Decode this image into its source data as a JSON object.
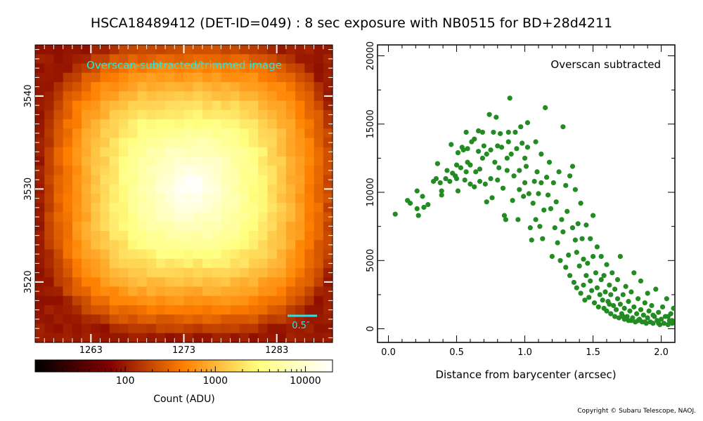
{
  "page": {
    "title": "HSCA18489412 (DET-ID=049) :  8 sec exposure with NB0515 for BD+28d4211",
    "copyright": "Copyright © Subaru Telescope, NAOJ."
  },
  "chart_data": [
    {
      "type": "heatmap",
      "title": "Overscan-subtracted/trimmed image",
      "x_ticks": [
        1263,
        1273,
        1283
      ],
      "y_ticks": [
        3520,
        3530,
        3540
      ],
      "xlim": [
        1257,
        1289
      ],
      "ylim": [
        3513.5,
        3545.5
      ],
      "scale_bar_label": "0.5″",
      "colormap": "afmhot",
      "colorbar": {
        "label": "Count (ADU)",
        "scale": "log",
        "range": [
          10,
          20000
        ],
        "ticks": [
          "100",
          "1000",
          "10000"
        ]
      }
    },
    {
      "type": "scatter",
      "annotation": "Overscan subtracted",
      "xlabel": "Distance from barycenter (arcsec)",
      "ylabel": "",
      "xlim": [
        -0.08,
        2.1
      ],
      "ylim": [
        -1000,
        20800
      ],
      "x_ticks": [
        "0.0",
        "0.5",
        "1.0",
        "1.5",
        "2.0"
      ],
      "y_ticks": [
        "0",
        "5000",
        "10000",
        "15000",
        "20000"
      ],
      "color": "#228b22",
      "points": [
        [
          0.05,
          8400
        ],
        [
          0.14,
          9400
        ],
        [
          0.16,
          9200
        ],
        [
          0.21,
          8800
        ],
        [
          0.21,
          10100
        ],
        [
          0.22,
          8300
        ],
        [
          0.25,
          9700
        ],
        [
          0.26,
          8900
        ],
        [
          0.29,
          9100
        ],
        [
          0.33,
          10800
        ],
        [
          0.35,
          11000
        ],
        [
          0.36,
          12100
        ],
        [
          0.38,
          10700
        ],
        [
          0.39,
          10100
        ],
        [
          0.39,
          9800
        ],
        [
          0.42,
          11000
        ],
        [
          0.43,
          11600
        ],
        [
          0.45,
          10800
        ],
        [
          0.46,
          13500
        ],
        [
          0.47,
          11400
        ],
        [
          0.49,
          11200
        ],
        [
          0.5,
          12000
        ],
        [
          0.5,
          11000
        ],
        [
          0.51,
          12900
        ],
        [
          0.51,
          10100
        ],
        [
          0.53,
          11800
        ],
        [
          0.54,
          13300
        ],
        [
          0.55,
          13100
        ],
        [
          0.56,
          10900
        ],
        [
          0.57,
          11500
        ],
        [
          0.57,
          14400
        ],
        [
          0.58,
          13200
        ],
        [
          0.58,
          12200
        ],
        [
          0.6,
          12000
        ],
        [
          0.6,
          10600
        ],
        [
          0.61,
          13700
        ],
        [
          0.63,
          13900
        ],
        [
          0.63,
          10400
        ],
        [
          0.64,
          11500
        ],
        [
          0.66,
          14500
        ],
        [
          0.66,
          13000
        ],
        [
          0.67,
          11700
        ],
        [
          0.67,
          10800
        ],
        [
          0.69,
          14400
        ],
        [
          0.69,
          12500
        ],
        [
          0.7,
          13400
        ],
        [
          0.71,
          10600
        ],
        [
          0.72,
          12800
        ],
        [
          0.72,
          9300
        ],
        [
          0.74,
          15700
        ],
        [
          0.75,
          13100
        ],
        [
          0.75,
          11000
        ],
        [
          0.76,
          9600
        ],
        [
          0.77,
          14400
        ],
        [
          0.78,
          12200
        ],
        [
          0.79,
          15500
        ],
        [
          0.8,
          13400
        ],
        [
          0.8,
          10900
        ],
        [
          0.81,
          11800
        ],
        [
          0.82,
          14300
        ],
        [
          0.83,
          13300
        ],
        [
          0.84,
          10300
        ],
        [
          0.85,
          8300
        ],
        [
          0.86,
          8000
        ],
        [
          0.87,
          12500
        ],
        [
          0.87,
          11600
        ],
        [
          0.88,
          14400
        ],
        [
          0.88,
          13700
        ],
        [
          0.89,
          16900
        ],
        [
          0.9,
          12800
        ],
        [
          0.91,
          9400
        ],
        [
          0.92,
          11200
        ],
        [
          0.93,
          14400
        ],
        [
          0.94,
          13200
        ],
        [
          0.95,
          8000
        ],
        [
          0.96,
          10200
        ],
        [
          0.96,
          11600
        ],
        [
          0.97,
          14800
        ],
        [
          0.98,
          13600
        ],
        [
          0.99,
          9700
        ],
        [
          1,
          12500
        ],
        [
          1,
          10700
        ],
        [
          1.01,
          11900
        ],
        [
          1.02,
          13300
        ],
        [
          1.02,
          15100
        ],
        [
          1.03,
          9900
        ],
        [
          1.04,
          7400
        ],
        [
          1.05,
          6500
        ],
        [
          1.06,
          9200
        ],
        [
          1.07,
          10800
        ],
        [
          1.08,
          13700
        ],
        [
          1.08,
          8000
        ],
        [
          1.09,
          11500
        ],
        [
          1.1,
          9900
        ],
        [
          1.11,
          7500
        ],
        [
          1.12,
          12800
        ],
        [
          1.12,
          10700
        ],
        [
          1.13,
          6600
        ],
        [
          1.14,
          8700
        ],
        [
          1.15,
          16200
        ],
        [
          1.16,
          11100
        ],
        [
          1.17,
          9800
        ],
        [
          1.18,
          12200
        ],
        [
          1.19,
          8800
        ],
        [
          1.2,
          5300
        ],
        [
          1.21,
          10700
        ],
        [
          1.22,
          7400
        ],
        [
          1.23,
          9300
        ],
        [
          1.24,
          6300
        ],
        [
          1.25,
          11500
        ],
        [
          1.26,
          5000
        ],
        [
          1.27,
          8000
        ],
        [
          1.28,
          14800
        ],
        [
          1.28,
          7100
        ],
        [
          1.3,
          10500
        ],
        [
          1.3,
          4500
        ],
        [
          1.31,
          8600
        ],
        [
          1.32,
          5400
        ],
        [
          1.33,
          11200
        ],
        [
          1.33,
          3900
        ],
        [
          1.35,
          7400
        ],
        [
          1.35,
          11900
        ],
        [
          1.36,
          3400
        ],
        [
          1.37,
          6500
        ],
        [
          1.37,
          10200
        ],
        [
          1.38,
          5600
        ],
        [
          1.38,
          3000
        ],
        [
          1.39,
          7700
        ],
        [
          1.4,
          4600
        ],
        [
          1.41,
          2600
        ],
        [
          1.41,
          9200
        ],
        [
          1.42,
          6600
        ],
        [
          1.43,
          3200
        ],
        [
          1.43,
          5100
        ],
        [
          1.44,
          2100
        ],
        [
          1.45,
          7600
        ],
        [
          1.45,
          3900
        ],
        [
          1.46,
          4800
        ],
        [
          1.47,
          2300
        ],
        [
          1.48,
          6600
        ],
        [
          1.48,
          3500
        ],
        [
          1.49,
          2800
        ],
        [
          1.5,
          5300
        ],
        [
          1.5,
          8300
        ],
        [
          1.51,
          1900
        ],
        [
          1.52,
          4100
        ],
        [
          1.53,
          3000
        ],
        [
          1.53,
          6000
        ],
        [
          1.54,
          1600
        ],
        [
          1.55,
          2500
        ],
        [
          1.56,
          3600
        ],
        [
          1.56,
          5300
        ],
        [
          1.57,
          2100
        ],
        [
          1.58,
          1500
        ],
        [
          1.58,
          3900
        ],
        [
          1.59,
          2700
        ],
        [
          1.6,
          4700
        ],
        [
          1.6,
          1300
        ],
        [
          1.61,
          2000
        ],
        [
          1.62,
          3200
        ],
        [
          1.63,
          1100
        ],
        [
          1.63,
          2500
        ],
        [
          1.64,
          4100
        ],
        [
          1.65,
          1700
        ],
        [
          1.66,
          900
        ],
        [
          1.66,
          2900
        ],
        [
          1.67,
          1400
        ],
        [
          1.68,
          2200
        ],
        [
          1.68,
          3600
        ],
        [
          1.69,
          800
        ],
        [
          1.7,
          1800
        ],
        [
          1.7,
          5300
        ],
        [
          1.71,
          1100
        ],
        [
          1.72,
          2500
        ],
        [
          1.73,
          700
        ],
        [
          1.73,
          1500
        ],
        [
          1.74,
          3100
        ],
        [
          1.75,
          900
        ],
        [
          1.76,
          2000
        ],
        [
          1.76,
          600
        ],
        [
          1.77,
          1300
        ],
        [
          1.78,
          2700
        ],
        [
          1.79,
          800
        ],
        [
          1.8,
          1600
        ],
        [
          1.8,
          4100
        ],
        [
          1.81,
          500
        ],
        [
          1.82,
          1100
        ],
        [
          1.83,
          2200
        ],
        [
          1.84,
          700
        ],
        [
          1.85,
          1400
        ],
        [
          1.85,
          3500
        ],
        [
          1.86,
          500
        ],
        [
          1.87,
          1000
        ],
        [
          1.88,
          1900
        ],
        [
          1.89,
          400
        ],
        [
          1.9,
          800
        ],
        [
          1.9,
          2600
        ],
        [
          1.91,
          1300
        ],
        [
          1.92,
          500
        ],
        [
          1.93,
          1700
        ],
        [
          1.94,
          400
        ],
        [
          1.95,
          900
        ],
        [
          1.96,
          2900
        ],
        [
          1.97,
          600
        ],
        [
          1.98,
          1200
        ],
        [
          1.99,
          300
        ],
        [
          2,
          700
        ],
        [
          2.01,
          1600
        ],
        [
          2.02,
          400
        ],
        [
          2.03,
          900
        ],
        [
          2.04,
          2200
        ],
        [
          2.05,
          300
        ],
        [
          2.06,
          600
        ],
        [
          2.07,
          1100
        ],
        [
          2.08,
          400
        ],
        [
          2.09,
          1500
        ],
        [
          1.62,
          1800
        ],
        [
          1.72,
          900
        ],
        [
          1.83,
          600
        ],
        [
          1.94,
          1000
        ],
        [
          2.05,
          900
        ],
        [
          1.78,
          600
        ],
        [
          1.88,
          500
        ],
        [
          1.98,
          400
        ],
        [
          2.08,
          600
        ]
      ]
    }
  ]
}
